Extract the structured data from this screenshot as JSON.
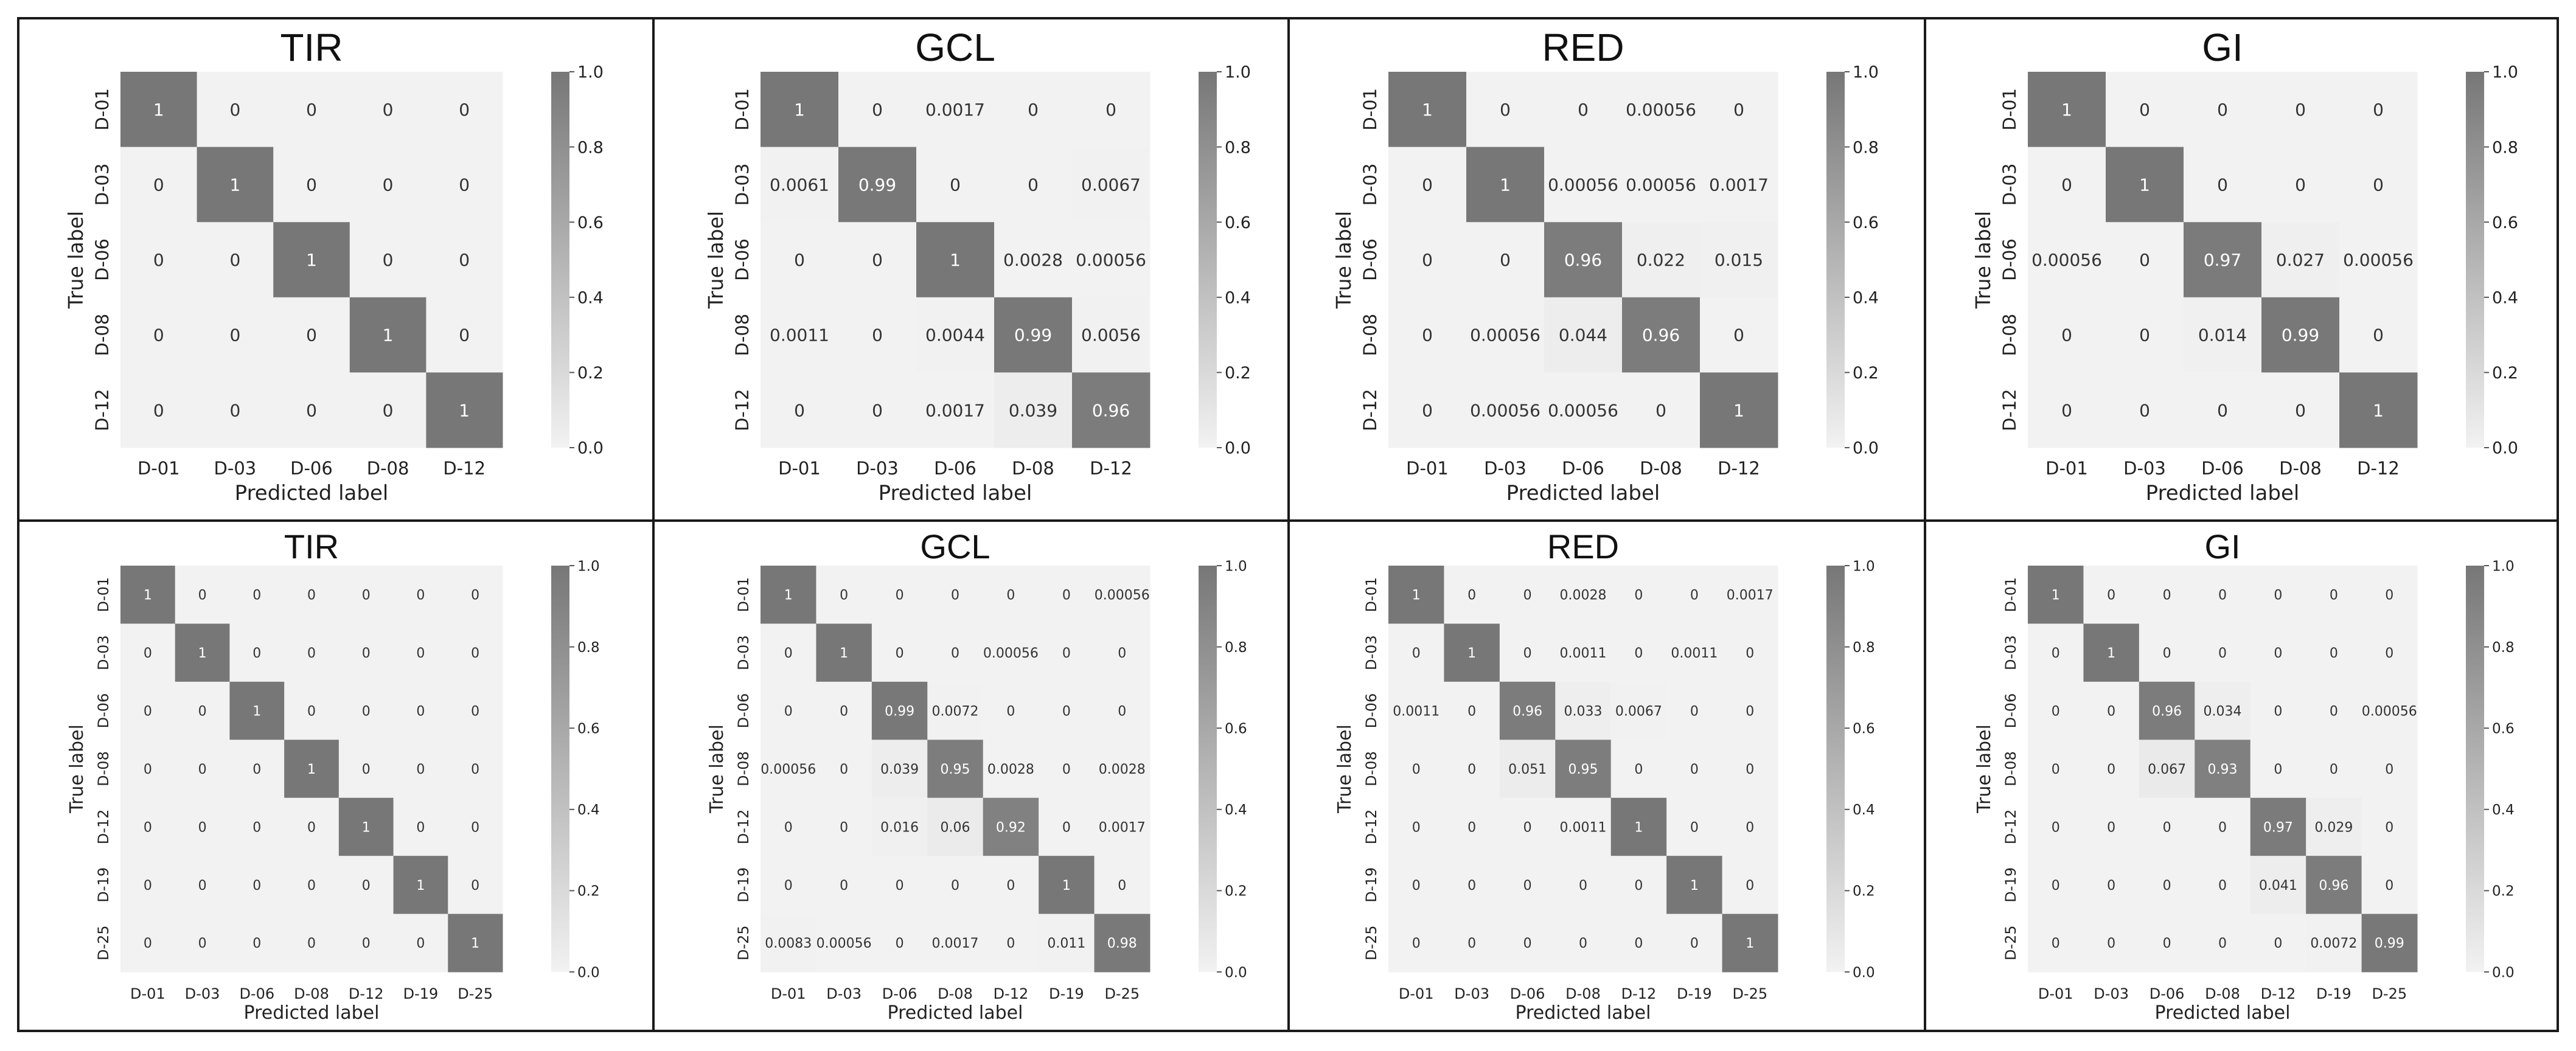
{
  "figure": {
    "colors": {
      "border": "#1a1a1a",
      "cell_max": "#777777",
      "cell_min": "#f2f2f2",
      "text_dark": "#333333",
      "text_light": "#ffffff"
    }
  },
  "chart_data": [
    {
      "type": "heatmap",
      "title": "TIR",
      "xlabel": "Predicted label",
      "ylabel": "True label",
      "labels": [
        "D-01",
        "D-03",
        "D-06",
        "D-08",
        "D-12"
      ],
      "colorbar": {
        "min": 0.0,
        "max": 1.0,
        "ticks": [
          "0.0",
          "0.2",
          "0.4",
          "0.6",
          "0.8",
          "1.0"
        ]
      },
      "matrix": [
        [
          "1",
          "0",
          "0",
          "0",
          "0"
        ],
        [
          "0",
          "1",
          "0",
          "0",
          "0"
        ],
        [
          "0",
          "0",
          "1",
          "0",
          "0"
        ],
        [
          "0",
          "0",
          "0",
          "1",
          "0"
        ],
        [
          "0",
          "0",
          "0",
          "0",
          "1"
        ]
      ]
    },
    {
      "type": "heatmap",
      "title": "GCL",
      "xlabel": "Predicted label",
      "ylabel": "True label",
      "labels": [
        "D-01",
        "D-03",
        "D-06",
        "D-08",
        "D-12"
      ],
      "colorbar": {
        "min": 0.0,
        "max": 1.0,
        "ticks": [
          "0.0",
          "0.2",
          "0.4",
          "0.6",
          "0.8",
          "1.0"
        ]
      },
      "matrix": [
        [
          "1",
          "0",
          "0.0017",
          "0",
          "0"
        ],
        [
          "0.0061",
          "0.99",
          "0",
          "0",
          "0.0067"
        ],
        [
          "0",
          "0",
          "1",
          "0.0028",
          "0.00056"
        ],
        [
          "0.0011",
          "0",
          "0.0044",
          "0.99",
          "0.0056"
        ],
        [
          "0",
          "0",
          "0.0017",
          "0.039",
          "0.96"
        ]
      ]
    },
    {
      "type": "heatmap",
      "title": "RED",
      "xlabel": "Predicted label",
      "ylabel": "True label",
      "labels": [
        "D-01",
        "D-03",
        "D-06",
        "D-08",
        "D-12"
      ],
      "colorbar": {
        "min": 0.0,
        "max": 1.0,
        "ticks": [
          "0.0",
          "0.2",
          "0.4",
          "0.6",
          "0.8",
          "1.0"
        ]
      },
      "matrix": [
        [
          "1",
          "0",
          "0",
          "0.00056",
          "0"
        ],
        [
          "0",
          "1",
          "0.00056",
          "0.00056",
          "0.0017"
        ],
        [
          "0",
          "0",
          "0.96",
          "0.022",
          "0.015"
        ],
        [
          "0",
          "0.00056",
          "0.044",
          "0.96",
          "0"
        ],
        [
          "0",
          "0.00056",
          "0.00056",
          "0",
          "1"
        ]
      ]
    },
    {
      "type": "heatmap",
      "title": "GI",
      "xlabel": "Predicted label",
      "ylabel": "True label",
      "labels": [
        "D-01",
        "D-03",
        "D-06",
        "D-08",
        "D-12"
      ],
      "colorbar": {
        "min": 0.0,
        "max": 1.0,
        "ticks": [
          "0.0",
          "0.2",
          "0.4",
          "0.6",
          "0.8",
          "1.0"
        ]
      },
      "matrix": [
        [
          "1",
          "0",
          "0",
          "0",
          "0"
        ],
        [
          "0",
          "1",
          "0",
          "0",
          "0"
        ],
        [
          "0.00056",
          "0",
          "0.97",
          "0.027",
          "0.00056"
        ],
        [
          "0",
          "0",
          "0.014",
          "0.99",
          "0"
        ],
        [
          "0",
          "0",
          "0",
          "0",
          "1"
        ]
      ]
    },
    {
      "type": "heatmap",
      "title": "TIR",
      "xlabel": "Predicted label",
      "ylabel": "True label",
      "labels": [
        "D-01",
        "D-03",
        "D-06",
        "D-08",
        "D-12",
        "D-19",
        "D-25"
      ],
      "colorbar": {
        "min": 0.0,
        "max": 1.0,
        "ticks": [
          "0.0",
          "0.2",
          "0.4",
          "0.6",
          "0.8",
          "1.0"
        ]
      },
      "matrix": [
        [
          "1",
          "0",
          "0",
          "0",
          "0",
          "0",
          "0"
        ],
        [
          "0",
          "1",
          "0",
          "0",
          "0",
          "0",
          "0"
        ],
        [
          "0",
          "0",
          "1",
          "0",
          "0",
          "0",
          "0"
        ],
        [
          "0",
          "0",
          "0",
          "1",
          "0",
          "0",
          "0"
        ],
        [
          "0",
          "0",
          "0",
          "0",
          "1",
          "0",
          "0"
        ],
        [
          "0",
          "0",
          "0",
          "0",
          "0",
          "1",
          "0"
        ],
        [
          "0",
          "0",
          "0",
          "0",
          "0",
          "0",
          "1"
        ]
      ]
    },
    {
      "type": "heatmap",
      "title": "GCL",
      "xlabel": "Predicted label",
      "ylabel": "True label",
      "labels": [
        "D-01",
        "D-03",
        "D-06",
        "D-08",
        "D-12",
        "D-19",
        "D-25"
      ],
      "colorbar": {
        "min": 0.0,
        "max": 1.0,
        "ticks": [
          "0.0",
          "0.2",
          "0.4",
          "0.6",
          "0.8",
          "1.0"
        ]
      },
      "matrix": [
        [
          "1",
          "0",
          "0",
          "0",
          "0",
          "0",
          "0.00056"
        ],
        [
          "0",
          "1",
          "0",
          "0",
          "0.00056",
          "0",
          "0"
        ],
        [
          "0",
          "0",
          "0.99",
          "0.0072",
          "0",
          "0",
          "0"
        ],
        [
          "0.00056",
          "0",
          "0.039",
          "0.95",
          "0.0028",
          "0",
          "0.0028"
        ],
        [
          "0",
          "0",
          "0.016",
          "0.06",
          "0.92",
          "0",
          "0.0017"
        ],
        [
          "0",
          "0",
          "0",
          "0",
          "0",
          "1",
          "0"
        ],
        [
          "0.0083",
          "0.00056",
          "0",
          "0.0017",
          "0",
          "0.011",
          "0.98"
        ]
      ]
    },
    {
      "type": "heatmap",
      "title": "RED",
      "xlabel": "Predicted label",
      "ylabel": "True label",
      "labels": [
        "D-01",
        "D-03",
        "D-06",
        "D-08",
        "D-12",
        "D-19",
        "D-25"
      ],
      "colorbar": {
        "min": 0.0,
        "max": 1.0,
        "ticks": [
          "0.0",
          "0.2",
          "0.4",
          "0.6",
          "0.8",
          "1.0"
        ]
      },
      "matrix": [
        [
          "1",
          "0",
          "0",
          "0.0028",
          "0",
          "0",
          "0.0017"
        ],
        [
          "0",
          "1",
          "0",
          "0.0011",
          "0",
          "0.0011",
          "0"
        ],
        [
          "0.0011",
          "0",
          "0.96",
          "0.033",
          "0.0067",
          "0",
          "0"
        ],
        [
          "0",
          "0",
          "0.051",
          "0.95",
          "0",
          "0",
          "0"
        ],
        [
          "0",
          "0",
          "0",
          "0.0011",
          "1",
          "0",
          "0"
        ],
        [
          "0",
          "0",
          "0",
          "0",
          "0",
          "1",
          "0"
        ],
        [
          "0",
          "0",
          "0",
          "0",
          "0",
          "0",
          "1"
        ]
      ]
    },
    {
      "type": "heatmap",
      "title": "GI",
      "xlabel": "Predicted label",
      "ylabel": "True label",
      "labels": [
        "D-01",
        "D-03",
        "D-06",
        "D-08",
        "D-12",
        "D-19",
        "D-25"
      ],
      "colorbar": {
        "min": 0.0,
        "max": 1.0,
        "ticks": [
          "0.0",
          "0.2",
          "0.4",
          "0.6",
          "0.8",
          "1.0"
        ]
      },
      "matrix": [
        [
          "1",
          "0",
          "0",
          "0",
          "0",
          "0",
          "0"
        ],
        [
          "0",
          "1",
          "0",
          "0",
          "0",
          "0",
          "0"
        ],
        [
          "0",
          "0",
          "0.96",
          "0.034",
          "0",
          "0",
          "0.00056"
        ],
        [
          "0",
          "0",
          "0.067",
          "0.93",
          "0",
          "0",
          "0"
        ],
        [
          "0",
          "0",
          "0",
          "0",
          "0.97",
          "0.029",
          "0"
        ],
        [
          "0",
          "0",
          "0",
          "0",
          "0.041",
          "0.96",
          "0"
        ],
        [
          "0",
          "0",
          "0",
          "0",
          "0",
          "0.0072",
          "0.99"
        ]
      ]
    }
  ]
}
